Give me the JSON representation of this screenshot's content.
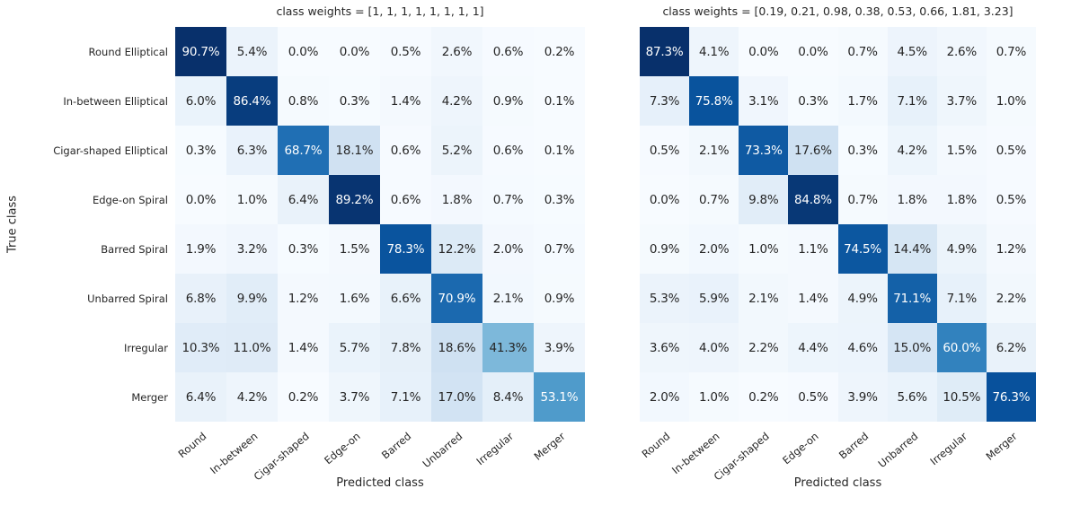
{
  "figure": {
    "background": "#ffffff",
    "text_color": "#262626",
    "cell_text_light": "#ffffff"
  },
  "chart_data": [
    {
      "type": "heatmap",
      "title": "class weights = [1, 1, 1, 1, 1, 1, 1, 1]",
      "xlabel": "Predicted class",
      "ylabel": "True class",
      "rows": [
        "Round Elliptical",
        "In-between Elliptical",
        "Cigar-shaped Elliptical",
        "Edge-on Spiral",
        "Barred Spiral",
        "Unbarred Spiral",
        "Irregular",
        "Merger"
      ],
      "cols": [
        "Round",
        "In-between",
        "Cigar-shaped",
        "Edge-on",
        "Barred",
        "Unbarred",
        "Irregular",
        "Merger"
      ],
      "values_percent": [
        [
          90.7,
          5.4,
          0.0,
          0.0,
          0.5,
          2.6,
          0.6,
          0.2
        ],
        [
          6.0,
          86.4,
          0.8,
          0.3,
          1.4,
          4.2,
          0.9,
          0.1
        ],
        [
          0.3,
          6.3,
          68.7,
          18.1,
          0.6,
          5.2,
          0.6,
          0.1
        ],
        [
          0.0,
          1.0,
          6.4,
          89.2,
          0.6,
          1.8,
          0.7,
          0.3
        ],
        [
          1.9,
          3.2,
          0.3,
          1.5,
          78.3,
          12.2,
          2.0,
          0.7
        ],
        [
          6.8,
          9.9,
          1.2,
          1.6,
          6.6,
          70.9,
          2.1,
          0.9
        ],
        [
          10.3,
          11.0,
          1.4,
          5.7,
          7.8,
          18.6,
          41.3,
          3.9
        ],
        [
          6.4,
          4.2,
          0.2,
          3.7,
          7.1,
          17.0,
          8.4,
          53.1
        ]
      ],
      "cell_label_format": "{value:.1f}%",
      "colormap": "Blues",
      "color_scale": {
        "type": "linear",
        "vmin": 0,
        "vmax": "data_max"
      },
      "grid_lines": false,
      "legend": "none"
    },
    {
      "type": "heatmap",
      "title": "class weights = [0.19, 0.21, 0.98, 0.38, 0.53, 0.66, 1.81, 3.23]",
      "xlabel": "Predicted class",
      "ylabel": "",
      "rows": [
        "Round Elliptical",
        "In-between Elliptical",
        "Cigar-shaped Elliptical",
        "Edge-on Spiral",
        "Barred Spiral",
        "Unbarred Spiral",
        "Irregular",
        "Merger"
      ],
      "cols": [
        "Round",
        "In-between",
        "Cigar-shaped",
        "Edge-on",
        "Barred",
        "Unbarred",
        "Irregular",
        "Merger"
      ],
      "values_percent": [
        [
          87.3,
          4.1,
          0.0,
          0.0,
          0.7,
          4.5,
          2.6,
          0.7
        ],
        [
          7.3,
          75.8,
          3.1,
          0.3,
          1.7,
          7.1,
          3.7,
          1.0
        ],
        [
          0.5,
          2.1,
          73.3,
          17.6,
          0.3,
          4.2,
          1.5,
          0.5
        ],
        [
          0.0,
          0.7,
          9.8,
          84.8,
          0.7,
          1.8,
          1.8,
          0.5
        ],
        [
          0.9,
          2.0,
          1.0,
          1.1,
          74.5,
          14.4,
          4.9,
          1.2
        ],
        [
          5.3,
          5.9,
          2.1,
          1.4,
          4.9,
          71.1,
          7.1,
          2.2
        ],
        [
          3.6,
          4.0,
          2.2,
          4.4,
          4.6,
          15.0,
          60.0,
          6.2
        ],
        [
          2.0,
          1.0,
          0.2,
          0.5,
          3.9,
          5.6,
          10.5,
          76.3
        ]
      ],
      "cell_label_format": "{value:.1f}%",
      "colormap": "Blues",
      "color_scale": {
        "type": "linear",
        "vmin": 0,
        "vmax": "data_max"
      },
      "grid_lines": false,
      "legend": "none"
    }
  ],
  "colormap_blues_anchors": [
    "#f7fbff",
    "#deebf7",
    "#c6dbef",
    "#9ecae1",
    "#6baed6",
    "#4292c6",
    "#2171b5",
    "#08519c",
    "#08306b"
  ]
}
